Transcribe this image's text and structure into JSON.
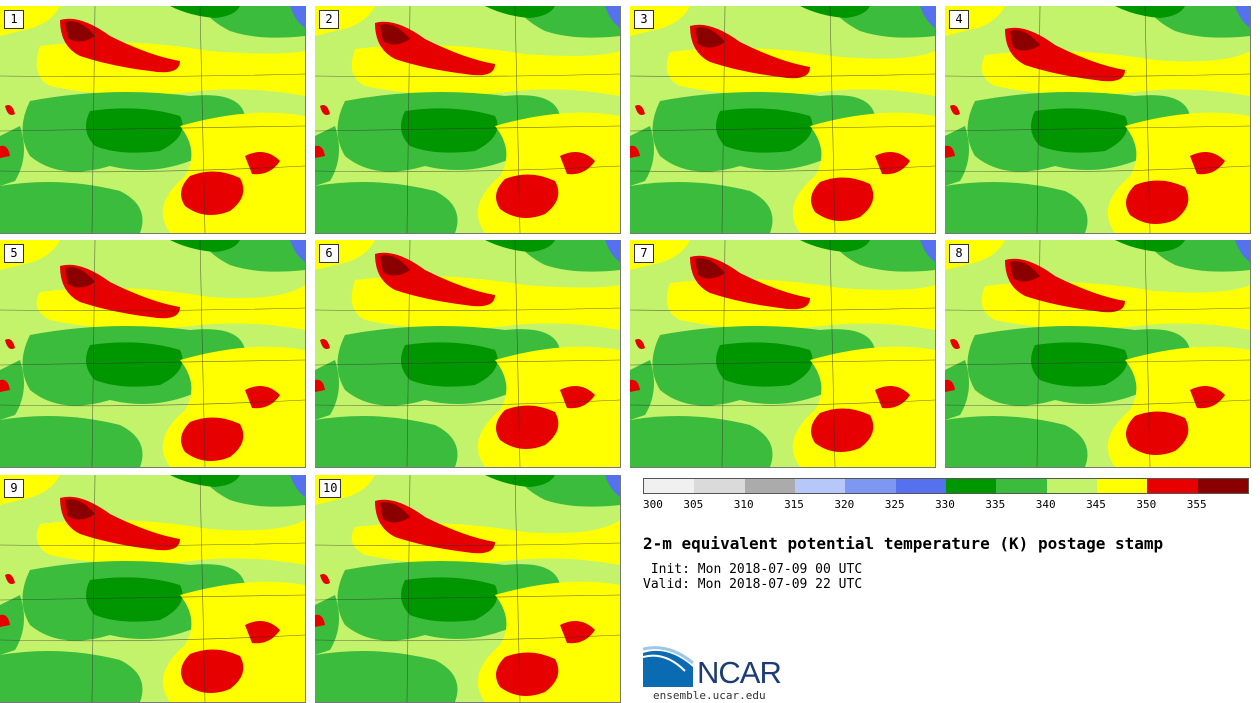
{
  "panels": [
    {
      "label": "1"
    },
    {
      "label": "2"
    },
    {
      "label": "3"
    },
    {
      "label": "4"
    },
    {
      "label": "5"
    },
    {
      "label": "6"
    },
    {
      "label": "7"
    },
    {
      "label": "8"
    },
    {
      "label": "9"
    },
    {
      "label": "10"
    }
  ],
  "colorbar": {
    "colors": [
      "#f0f0f0",
      "#dadada",
      "#ababab",
      "#b6c8fa",
      "#7d97f3",
      "#5571ee",
      "#009600",
      "#3cbc3c",
      "#c3f26b",
      "#ffff00",
      "#e60000",
      "#8a0000"
    ],
    "tick_labels": [
      "300",
      "305",
      "310",
      "315",
      "320",
      "325",
      "330",
      "335",
      "340",
      "345",
      "350",
      "355"
    ]
  },
  "title": "2-m equivalent potential temperature (K) postage stamp",
  "init": " Init: Mon 2018-07-09 00 UTC",
  "valid": "Valid: Mon 2018-07-09 22 UTC",
  "logo": {
    "text": "NCAR",
    "site": "ensemble.ucar.edu"
  }
}
